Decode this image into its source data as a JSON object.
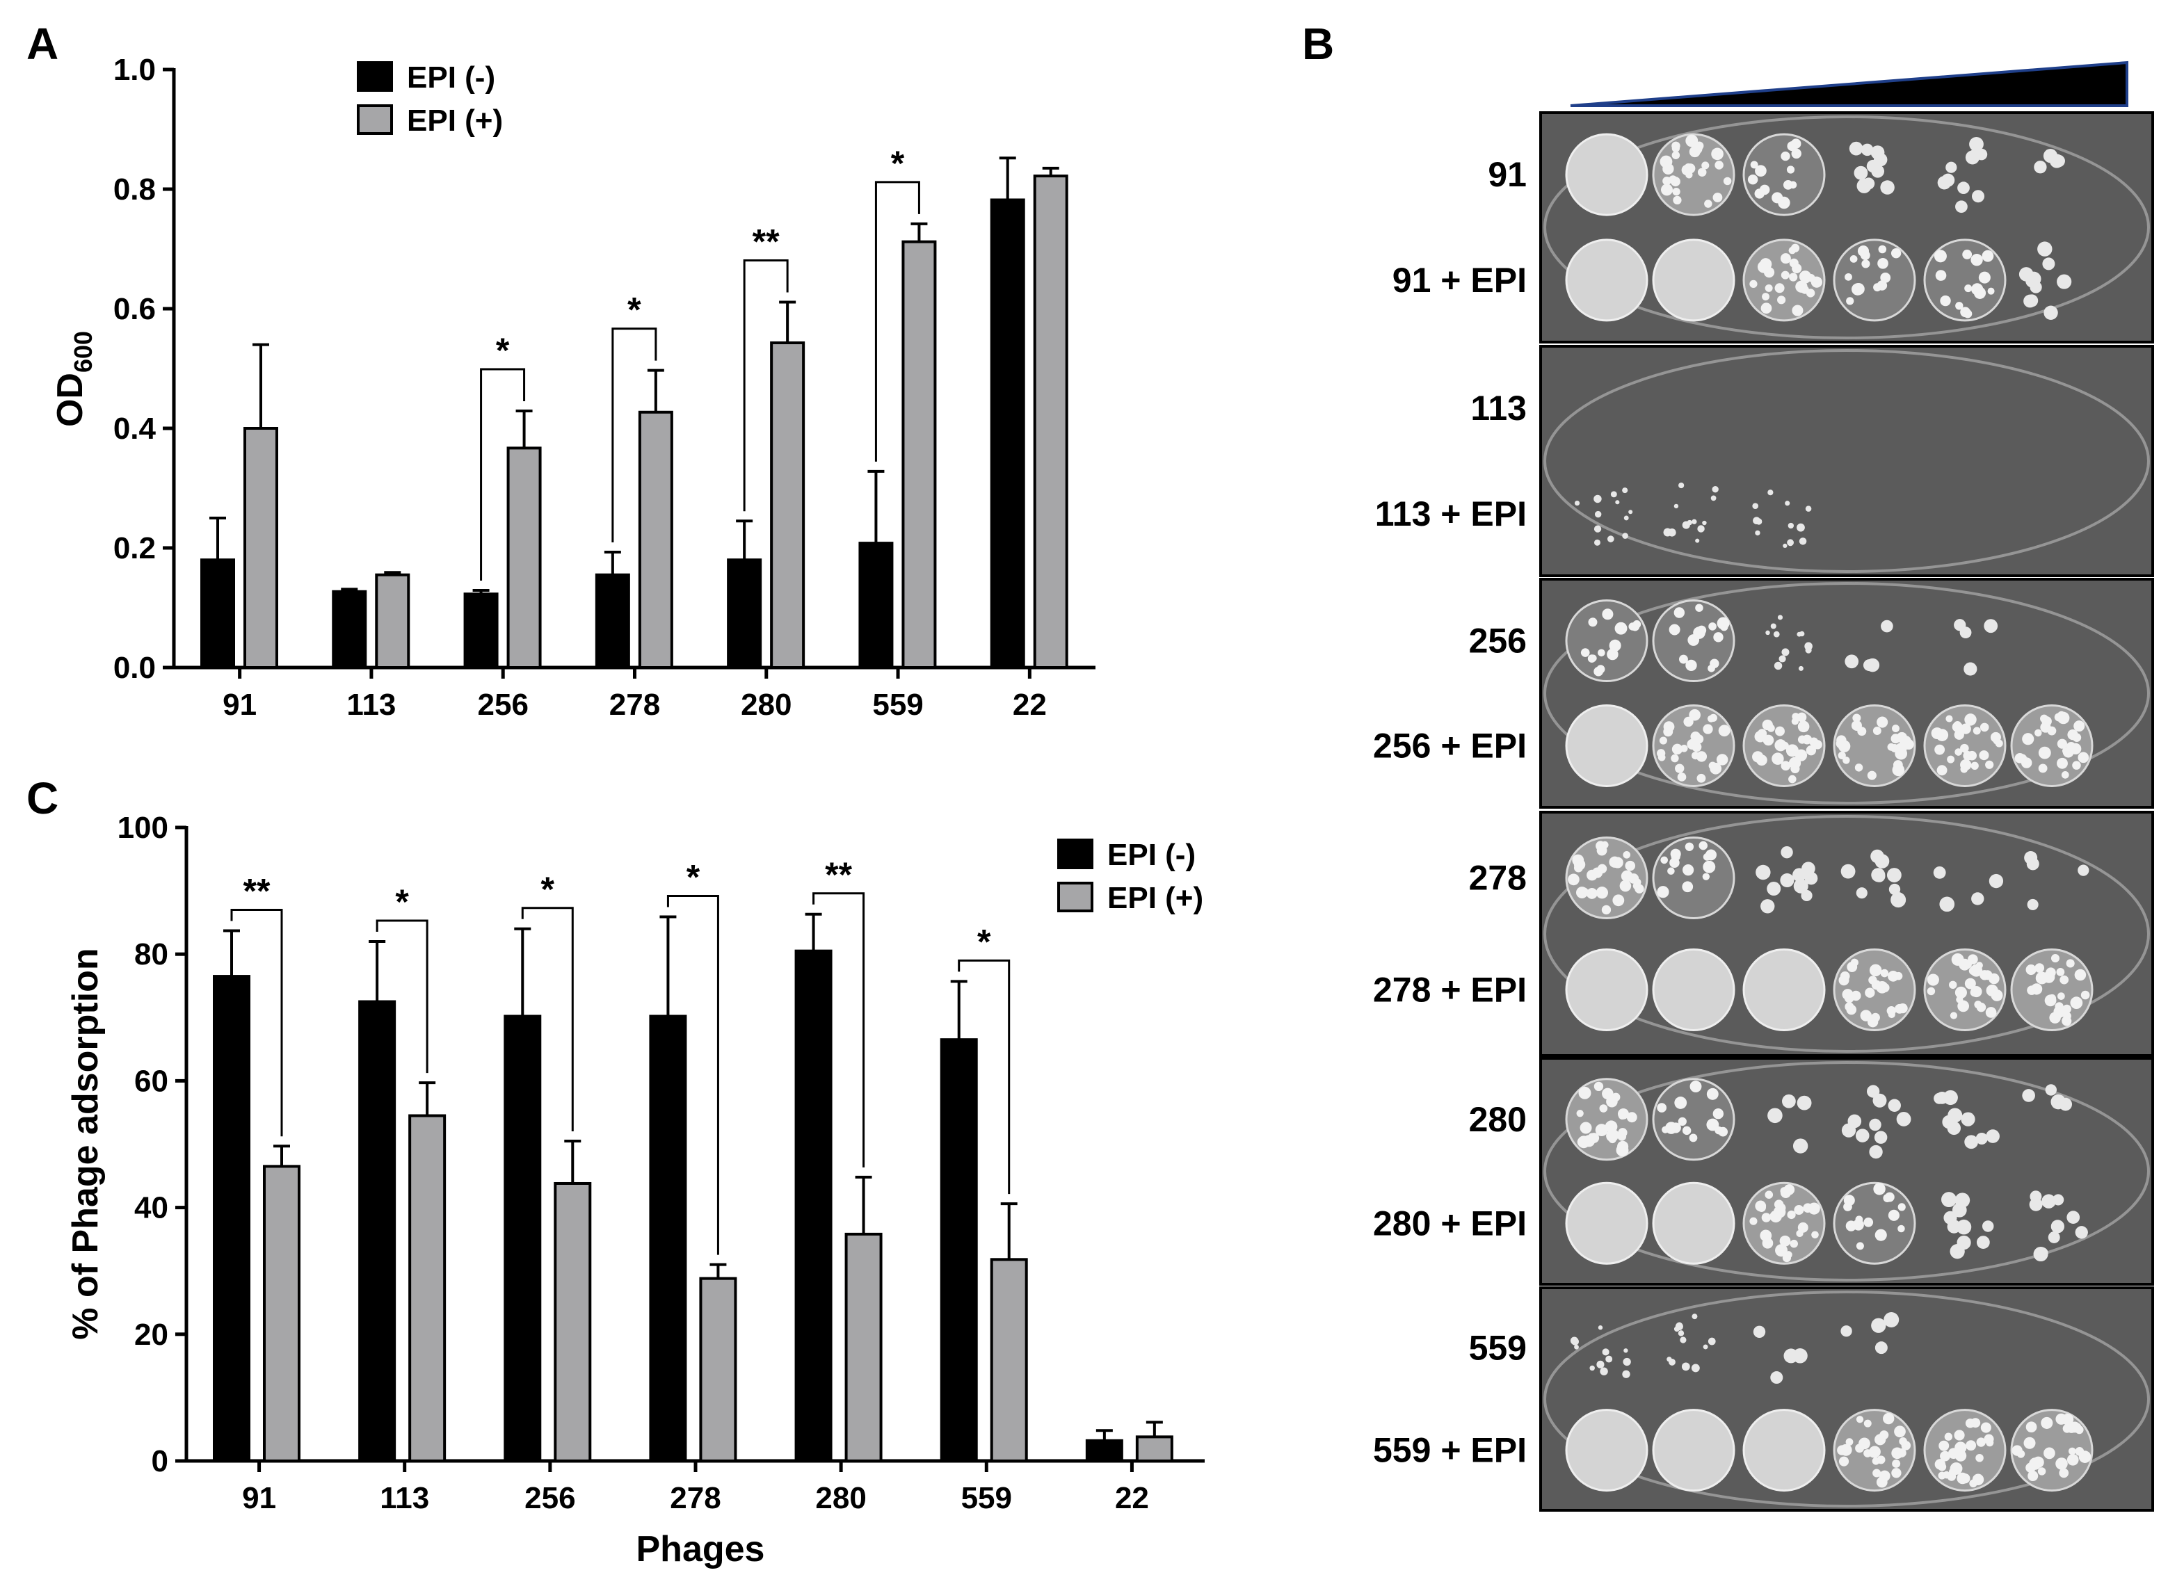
{
  "colors": {
    "epi_minus": "#000000",
    "epi_plus": "#a6a6a8",
    "wedge": "#000000",
    "wedge_edge": "#1f3f8a",
    "plate_bg": "#5b5b5b"
  },
  "panels": {
    "A": "A",
    "B": "B",
    "C": "C"
  },
  "chart_data": [
    {
      "panel": "A",
      "type": "bar",
      "ylabel_main": "OD",
      "ylabel_sub": "600",
      "xlabel": "",
      "ylim": [
        0,
        1.0
      ],
      "yticks": [
        "0.0",
        "0.2",
        "0.4",
        "0.6",
        "0.8",
        "1.0"
      ],
      "categories": [
        "91",
        "113",
        "256",
        "278",
        "280",
        "559",
        "22"
      ],
      "legend_position": "top-left",
      "series": [
        {
          "name": "EPI (-)",
          "values": [
            0.18,
            0.127,
            0.123,
            0.155,
            0.18,
            0.208,
            0.782
          ],
          "errors": [
            0.07,
            0.004,
            0.006,
            0.038,
            0.065,
            0.12,
            0.07
          ]
        },
        {
          "name": "EPI (+)",
          "values": [
            0.4,
            0.155,
            0.367,
            0.427,
            0.543,
            0.712,
            0.822
          ],
          "errors": [
            0.14,
            0.004,
            0.062,
            0.07,
            0.068,
            0.03,
            0.013
          ]
        }
      ],
      "significance": [
        {
          "category": "256",
          "label": "*"
        },
        {
          "category": "278",
          "label": "*"
        },
        {
          "category": "280",
          "label": "**"
        },
        {
          "category": "559",
          "label": "*"
        }
      ]
    },
    {
      "panel": "C",
      "type": "bar",
      "ylabel": "% of Phage adsorption",
      "xlabel": "Phages",
      "ylim": [
        0,
        100
      ],
      "yticks": [
        "0",
        "20",
        "40",
        "60",
        "80",
        "100"
      ],
      "categories": [
        "91",
        "113",
        "256",
        "278",
        "280",
        "559",
        "22"
      ],
      "legend_position": "top-right",
      "series": [
        {
          "name": "EPI (-)",
          "values": [
            76.5,
            72.5,
            70.2,
            70.2,
            80.5,
            66.5,
            3.2
          ],
          "errors": [
            7.2,
            9.5,
            13.8,
            15.7,
            5.8,
            9.2,
            1.6
          ]
        },
        {
          "name": "EPI (+)",
          "values": [
            46.5,
            54.5,
            43.8,
            28.8,
            35.8,
            31.8,
            3.8
          ],
          "errors": [
            3.2,
            5.2,
            6.7,
            2.2,
            9.0,
            8.8,
            2.3
          ]
        }
      ],
      "significance": [
        {
          "category": "91",
          "label": "**"
        },
        {
          "category": "113",
          "label": "*"
        },
        {
          "category": "256",
          "label": "*"
        },
        {
          "category": "278",
          "label": "*"
        },
        {
          "category": "280",
          "label": "**"
        },
        {
          "category": "559",
          "label": "*"
        }
      ]
    }
  ],
  "plates": [
    {
      "labels": [
        "91",
        "91 + EPI"
      ],
      "rows": [
        [
          "lawn",
          "dense",
          "medium",
          "sparse",
          "sparse",
          "few"
        ],
        [
          "lawn",
          "lawn",
          "dense",
          "medium",
          "medium",
          "sparse"
        ]
      ]
    },
    {
      "labels": [
        "113",
        "113 + EPI"
      ],
      "rows": [
        [
          "none",
          "none",
          "none",
          "none",
          "none",
          "none"
        ],
        [
          "tiny",
          "tiny",
          "tiny",
          "none",
          "none",
          "none"
        ]
      ]
    },
    {
      "labels": [
        "256",
        "256 + EPI"
      ],
      "rows": [
        [
          "medium",
          "medium",
          "tiny",
          "few",
          "few",
          "none"
        ],
        [
          "lawn",
          "dense",
          "dense",
          "dense",
          "dense",
          "dense"
        ]
      ]
    },
    {
      "labels": [
        "278",
        "278 + EPI"
      ],
      "rows": [
        [
          "dense",
          "medium",
          "sparse",
          "sparse",
          "few",
          "few"
        ],
        [
          "lawn",
          "lawn",
          "lawn",
          "dense",
          "dense",
          "dense"
        ]
      ]
    },
    {
      "labels": [
        "280",
        "280 + EPI"
      ],
      "rows": [
        [
          "dense",
          "medium",
          "few",
          "sparse",
          "sparse",
          "few"
        ],
        [
          "lawn",
          "lawn",
          "dense",
          "medium",
          "sparse",
          "sparse"
        ]
      ]
    },
    {
      "labels": [
        "559",
        "559 + EPI"
      ],
      "rows": [
        [
          "tiny",
          "tiny",
          "few",
          "few",
          "none",
          "none"
        ],
        [
          "lawn",
          "lawn",
          "lawn",
          "dense",
          "dense",
          "dense"
        ]
      ]
    }
  ]
}
